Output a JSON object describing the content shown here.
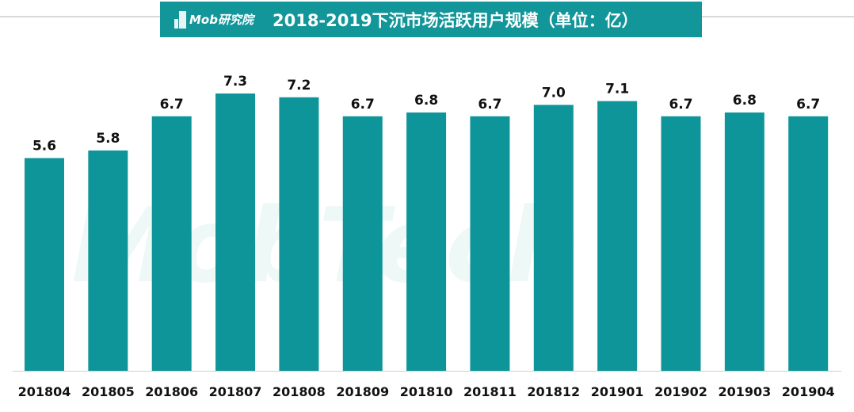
{
  "header": {
    "logo_text": "Mob研究院",
    "title": "2018-2019下沉市场活跃用户规模（单位：亿）"
  },
  "watermark": "MobTech",
  "colors": {
    "bar": "#0e9599",
    "header_bg": "#12969a",
    "label": "#111111"
  },
  "chart_data": {
    "type": "bar",
    "title": "2018-2019下沉市场活跃用户规模（单位：亿）",
    "categories": [
      "201804",
      "201805",
      "201806",
      "201807",
      "201808",
      "201809",
      "201810",
      "201811",
      "201812",
      "201901",
      "201902",
      "201903",
      "201904"
    ],
    "values": [
      5.6,
      5.8,
      6.7,
      7.3,
      7.2,
      6.7,
      6.8,
      6.7,
      7.0,
      7.1,
      6.7,
      6.8,
      6.7
    ],
    "value_labels": [
      "5.6",
      "5.8",
      "6.7",
      "7.3",
      "7.2",
      "6.7",
      "6.8",
      "6.7",
      "7.0",
      "7.1",
      "6.7",
      "6.8",
      "6.7"
    ],
    "xlabel": "",
    "ylabel": "",
    "ylim": [
      0,
      7.3
    ],
    "grid": false,
    "legend": "none"
  }
}
